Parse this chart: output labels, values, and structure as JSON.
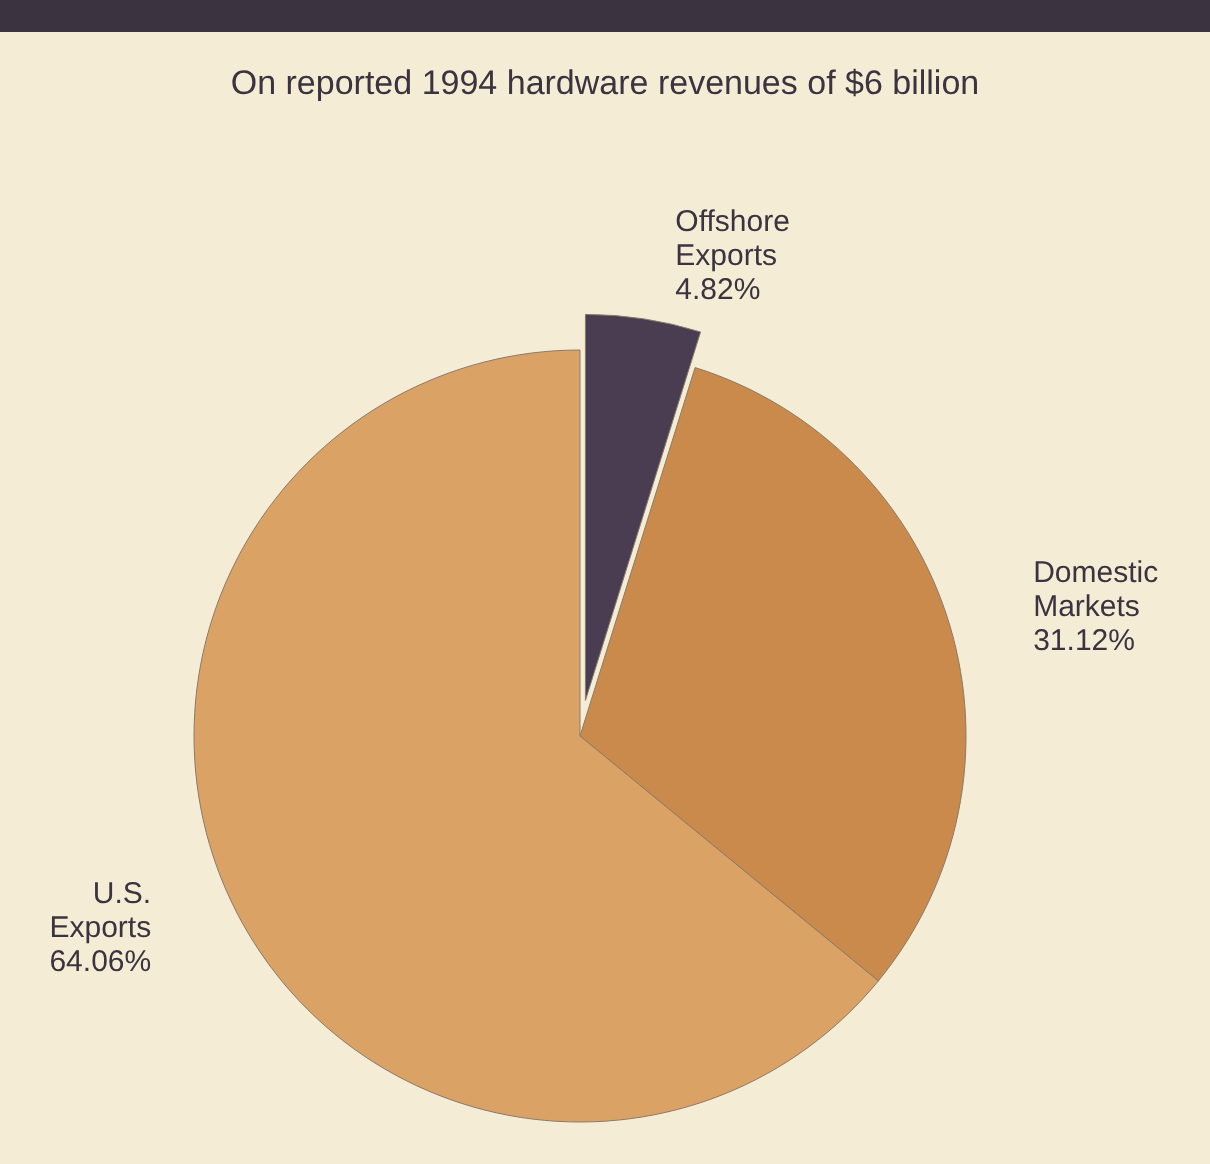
{
  "chart_data": {
    "type": "pie",
    "title": "On reported 1994 hardware revenues of $6 billion",
    "categories": [
      "Offshore Exports",
      "Domestic Markets",
      "U.S. Exports"
    ],
    "values": [
      4.82,
      31.12,
      64.06
    ],
    "colors": [
      "#4a3d52",
      "#c98a4c",
      "#dba266"
    ],
    "value_labels": [
      "4.82%",
      "31.12%",
      "64.06%"
    ],
    "legend": false
  }
}
